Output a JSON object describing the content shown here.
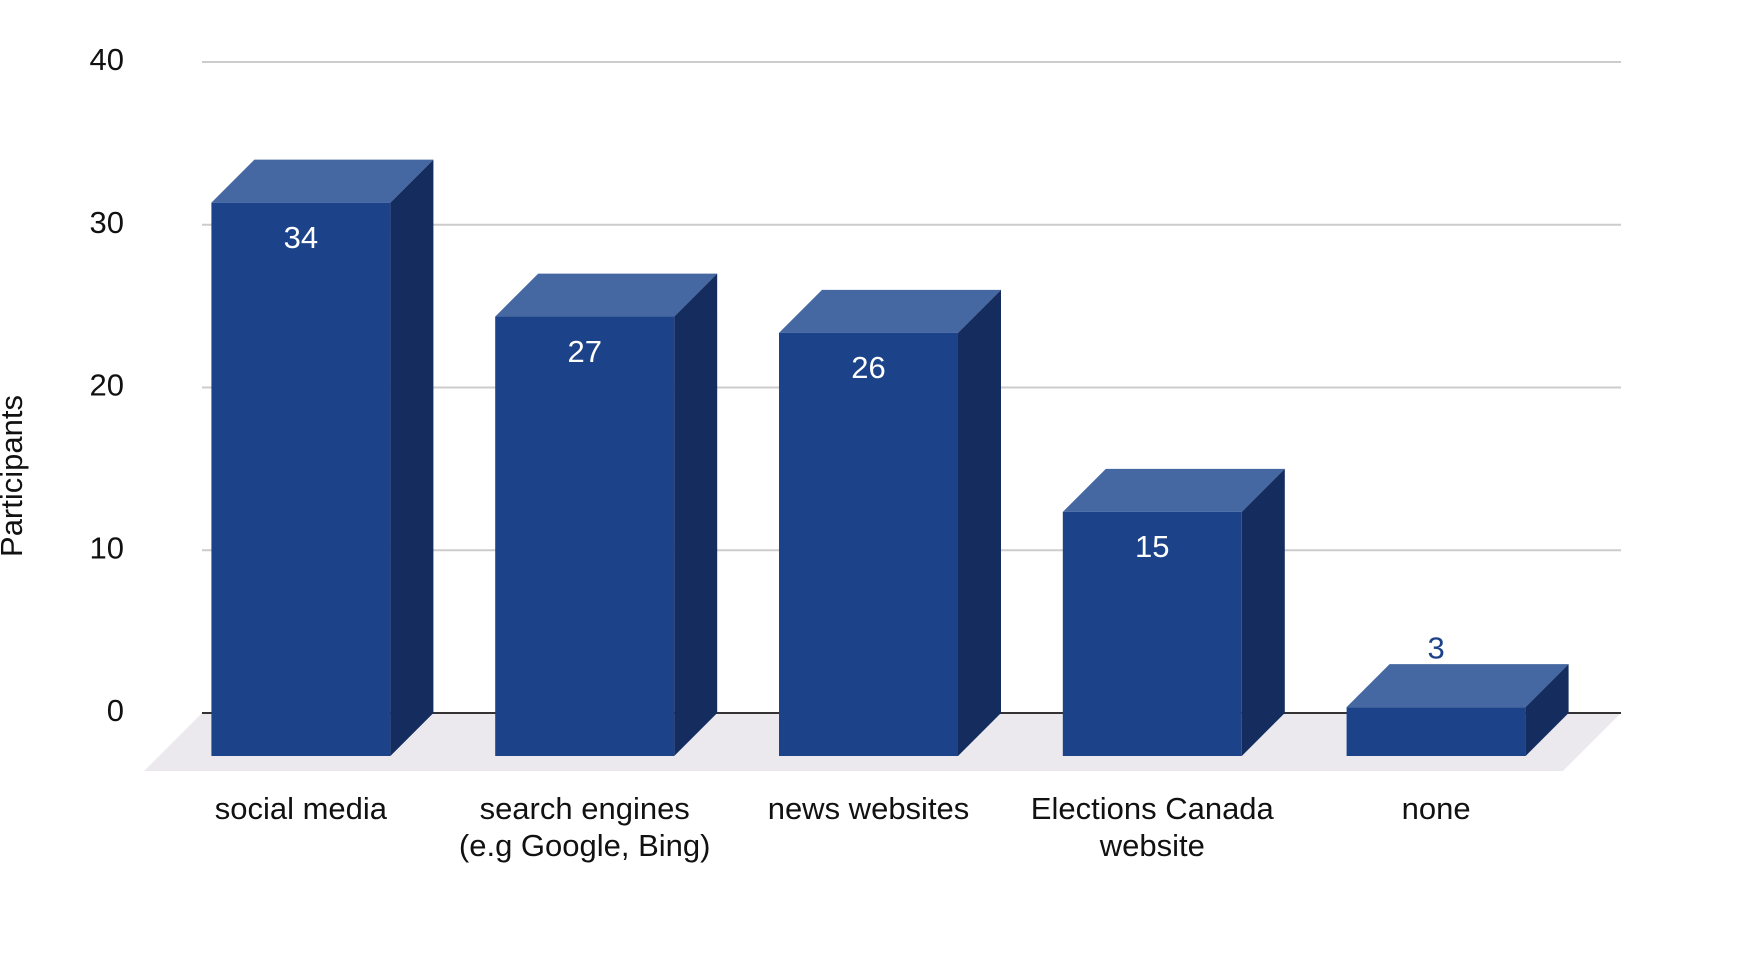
{
  "chart_data": {
    "type": "bar3d",
    "y_label": "Participants",
    "categories": [
      "social media",
      "search engines (e.g Google, Bing)",
      "news websites",
      "Elections Canada website",
      "none"
    ],
    "values": [
      34,
      27,
      26,
      15,
      3
    ],
    "color": "#1c4389",
    "ylim": [
      0,
      40
    ],
    "yticks": [
      0,
      10,
      20,
      30,
      40
    ],
    "grid": true
  }
}
